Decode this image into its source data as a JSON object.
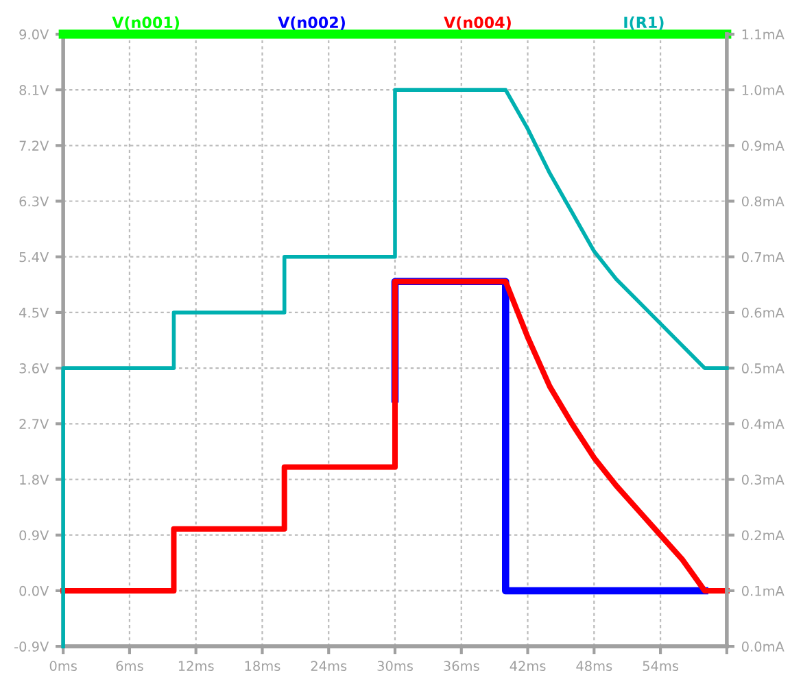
{
  "chart_data": {
    "type": "line",
    "xlim": [
      0,
      60
    ],
    "xticks": [
      {
        "value": 0,
        "label": "0ms"
      },
      {
        "value": 6,
        "label": "6ms"
      },
      {
        "value": 12,
        "label": "12ms"
      },
      {
        "value": 18,
        "label": "18ms"
      },
      {
        "value": 24,
        "label": "24ms"
      },
      {
        "value": 30,
        "label": "30ms"
      },
      {
        "value": 36,
        "label": "36ms"
      },
      {
        "value": 42,
        "label": "42ms"
      },
      {
        "value": 48,
        "label": "48ms"
      },
      {
        "value": 54,
        "label": "54ms"
      },
      {
        "value": 60,
        "label": null
      }
    ],
    "ylim": [
      -0.9,
      9.0
    ],
    "yticks": [
      {
        "value": -0.9,
        "label": "-0.9V"
      },
      {
        "value": 0.0,
        "label": "0.0V"
      },
      {
        "value": 0.9,
        "label": "0.9V"
      },
      {
        "value": 1.8,
        "label": "1.8V"
      },
      {
        "value": 2.7,
        "label": "2.7V"
      },
      {
        "value": 3.6,
        "label": "3.6V"
      },
      {
        "value": 4.5,
        "label": "4.5V"
      },
      {
        "value": 5.4,
        "label": "5.4V"
      },
      {
        "value": 6.3,
        "label": "6.3V"
      },
      {
        "value": 7.2,
        "label": "7.2V"
      },
      {
        "value": 8.1,
        "label": "8.1V"
      },
      {
        "value": 9.0,
        "label": "9.0V"
      }
    ],
    "y2lim": [
      0,
      1.1
    ],
    "y2ticks": [
      {
        "value": 0.0,
        "label": "0.0mA"
      },
      {
        "value": 0.1,
        "label": "0.1mA"
      },
      {
        "value": 0.2,
        "label": "0.2mA"
      },
      {
        "value": 0.3,
        "label": "0.3mA"
      },
      {
        "value": 0.4,
        "label": "0.4mA"
      },
      {
        "value": 0.5,
        "label": "0.5mA"
      },
      {
        "value": 0.6,
        "label": "0.6mA"
      },
      {
        "value": 0.7,
        "label": "0.7mA"
      },
      {
        "value": 0.8,
        "label": "0.8mA"
      },
      {
        "value": 0.9,
        "label": "0.9mA"
      },
      {
        "value": 1.0,
        "label": "1.0mA"
      },
      {
        "value": 1.1,
        "label": "1.1mA"
      }
    ],
    "grid": true,
    "legend": "top",
    "line_style": "solid",
    "marker": "none",
    "series": [
      {
        "name": "V(n001)",
        "color": "#00ff00",
        "x": [
          0,
          60
        ],
        "values": [
          9.0,
          9.0
        ]
      },
      {
        "name": "V(n002)",
        "color": "#0000ff",
        "x": [
          30,
          30,
          40,
          40,
          58
        ],
        "values": [
          3.1,
          5.0,
          5.0,
          0.0,
          0.0
        ]
      },
      {
        "name": "V(n004)",
        "color": "#ff0000",
        "x": [
          0,
          10,
          10,
          20,
          20,
          30,
          30,
          40,
          42,
          44,
          46,
          48,
          50,
          52,
          54,
          56,
          58,
          60
        ],
        "values": [
          0.0,
          0.0,
          1.0,
          1.0,
          2.0,
          2.0,
          5.0,
          5.0,
          4.1,
          3.3,
          2.7,
          2.15,
          1.7,
          1.3,
          0.9,
          0.5,
          0.0,
          0.0
        ]
      },
      {
        "name": "I(R1)",
        "color": "#00b0b0",
        "axis": "y2",
        "x": [
          0,
          0,
          10,
          10,
          20,
          20,
          30,
          30,
          40,
          42,
          44,
          46,
          48,
          50,
          52,
          54,
          56,
          58,
          60
        ],
        "values": [
          0.0,
          0.5,
          0.5,
          0.6,
          0.6,
          0.7,
          0.7,
          1.0,
          1.0,
          0.93,
          0.85,
          0.78,
          0.71,
          0.66,
          0.62,
          0.58,
          0.54,
          0.5,
          0.5
        ]
      }
    ]
  }
}
